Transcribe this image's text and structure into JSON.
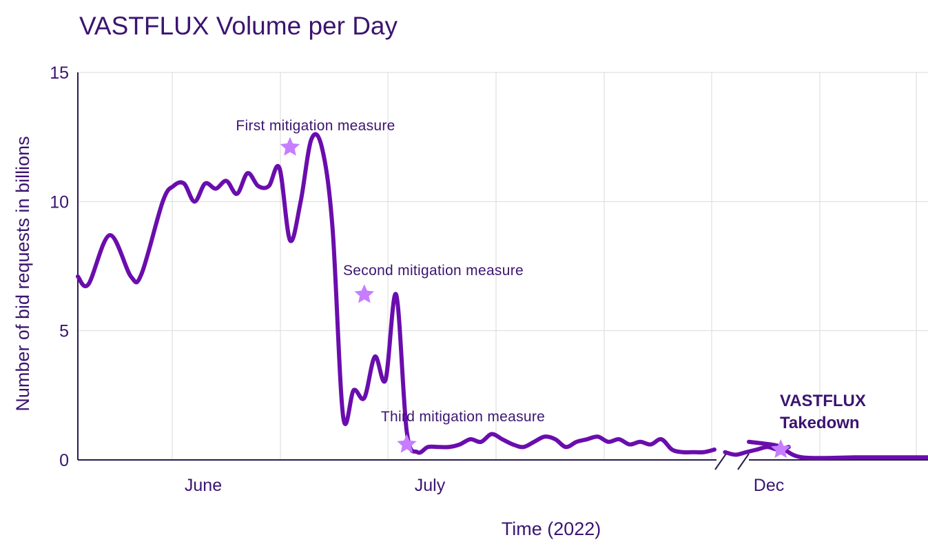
{
  "chart_data": {
    "type": "line",
    "title": "VASTFLUX Volume per Day",
    "xlabel": "Time (2022)",
    "ylabel": "Number of bid requests in billions",
    "ylim": [
      0,
      15
    ],
    "yticks": [
      0,
      5,
      10,
      15
    ],
    "x_tick_labels": [
      "June",
      "July",
      "Dec"
    ],
    "grid": true,
    "axis_break": "between July and Dec",
    "colors": {
      "line": "#6a0dad",
      "marker": "#c77dff",
      "text": "#3b1470",
      "grid": "#d9d9d9"
    },
    "series": [
      {
        "segment": "June-July",
        "x_day_index": [
          0,
          1,
          3,
          5,
          6,
          8,
          9,
          10,
          11,
          12,
          13,
          14,
          15,
          16,
          17,
          18,
          19,
          20,
          21,
          22,
          23,
          24,
          25,
          26,
          27,
          28,
          29,
          30,
          31,
          32,
          33,
          34,
          35,
          36,
          37,
          38,
          39,
          40,
          41,
          42,
          43,
          44,
          45,
          46,
          47,
          48,
          49,
          50,
          51,
          52,
          53,
          54,
          55,
          56,
          57,
          58,
          59,
          60
        ],
        "values": [
          7.1,
          6.8,
          8.7,
          7.1,
          7.2,
          10.0,
          10.6,
          10.7,
          10.0,
          10.7,
          10.5,
          10.8,
          10.3,
          11.1,
          10.6,
          10.6,
          11.3,
          8.5,
          10.0,
          12.4,
          12.1,
          9.0,
          1.7,
          2.7,
          2.4,
          4.0,
          3.1,
          6.4,
          1.1,
          0.3,
          0.5,
          0.5,
          0.5,
          0.6,
          0.8,
          0.7,
          1.0,
          0.8,
          0.6,
          0.5,
          0.7,
          0.9,
          0.8,
          0.5,
          0.7,
          0.8,
          0.9,
          0.7,
          0.8,
          0.6,
          0.7,
          0.6,
          0.8,
          0.4,
          0.3,
          0.3,
          0.3,
          0.4
        ]
      },
      {
        "segment": "July-end",
        "x_day_index": [
          61,
          62,
          63,
          64,
          65,
          66,
          67
        ],
        "values": [
          0.3,
          0.2,
          0.3,
          0.4,
          0.5,
          0.4,
          0.5
        ]
      },
      {
        "segment": "Dec",
        "x_day_index": [
          70,
          72,
          73,
          75,
          80
        ],
        "values": [
          0.7,
          0.6,
          0.5,
          0.1,
          0.1
        ]
      }
    ],
    "annotations": [
      {
        "label": "First mitigation measure",
        "x_day_index": 20,
        "y": 12.1
      },
      {
        "label": "Second mitigation measure",
        "x_day_index": 27,
        "y": 6.4
      },
      {
        "label": "Third mitigation measure",
        "x_day_index": 31,
        "y": 0.6
      },
      {
        "label_line1": "VASTFLUX",
        "label_line2": "Takedown",
        "x_day_index": 73,
        "y": 0.4
      }
    ]
  }
}
